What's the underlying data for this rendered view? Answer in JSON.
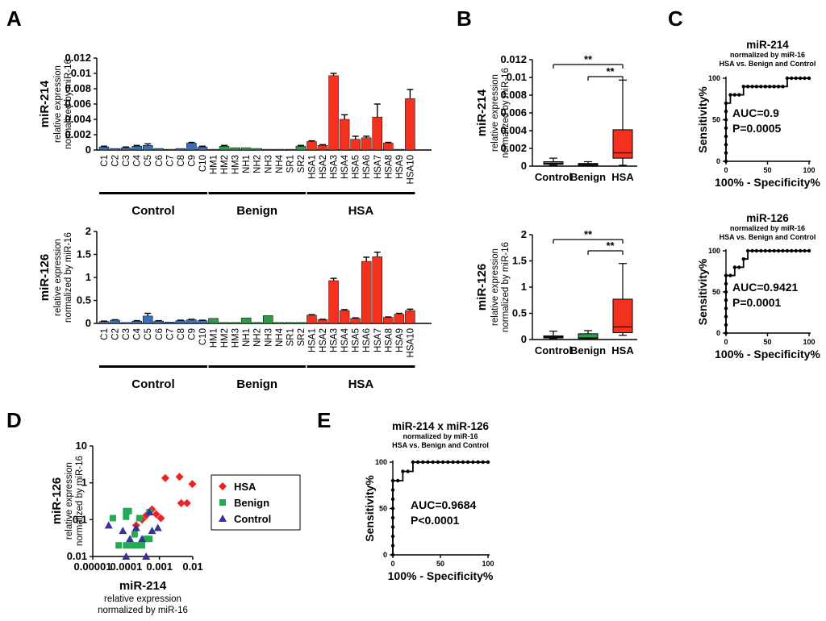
{
  "panels": [
    "A",
    "B",
    "C",
    "D",
    "E"
  ],
  "groups": [
    "Control",
    "Benign",
    "HSA"
  ],
  "colors": {
    "control": "#3a6eb5",
    "benign": "#2e9a4a",
    "hsa": "#f2311f",
    "diamond": "#ee2222",
    "square": "#22aa55",
    "triangle": "#33339a"
  },
  "chart_data": [
    {
      "id": "A-miR214",
      "type": "bar",
      "ylabel": "miR-214",
      "ylabel_sub1": "relative expression",
      "ylabel_sub2": "normalized by miR-16",
      "ylim": [
        0,
        0.012
      ],
      "yticks": [
        "0",
        "0.002",
        "0.004",
        "0.006",
        "0.008",
        "0.01",
        "0.012"
      ],
      "categories": [
        "C1",
        "C2",
        "C3",
        "C4",
        "C5",
        "C6",
        "C7",
        "C8",
        "C9",
        "C10",
        "HM1",
        "HM2",
        "HM3",
        "NH1",
        "NH2",
        "NH3",
        "NH4",
        "SR1",
        "SR2",
        "HSA1",
        "HSA2",
        "HSA3",
        "HSA4",
        "HSA5",
        "HSA6",
        "HSA7",
        "HSA8",
        "HSA9",
        "HSA10"
      ],
      "groups": [
        "control",
        "control",
        "control",
        "control",
        "control",
        "control",
        "control",
        "control",
        "control",
        "control",
        "benign",
        "benign",
        "benign",
        "benign",
        "benign",
        "benign",
        "benign",
        "benign",
        "benign",
        "hsa",
        "hsa",
        "hsa",
        "hsa",
        "hsa",
        "hsa",
        "hsa",
        "hsa",
        "hsa",
        "hsa"
      ],
      "values": [
        0.0004,
        0.0002,
        0.0003,
        0.0005,
        0.0006,
        0.0002,
        0.0001,
        0.0002,
        0.0009,
        0.0004,
        0.0001,
        0.0005,
        0.0003,
        0.0003,
        0.0002,
        0.0001,
        0.0001,
        0.0001,
        0.0005,
        0.0011,
        0.0006,
        0.0097,
        0.004,
        0.0014,
        0.0016,
        0.0043,
        0.0009,
        0.0001,
        0.0067
      ],
      "errors": [
        0.0001,
        0,
        0.0001,
        0.0001,
        0.0002,
        0,
        0,
        0,
        0.0001,
        0.0001,
        0,
        0.0001,
        0,
        0,
        0,
        0,
        0,
        0,
        0.0001,
        0.0001,
        0.0001,
        0.0003,
        0.0006,
        0.0004,
        0.0002,
        0.0017,
        0.0001,
        0,
        0.0012
      ]
    },
    {
      "id": "A-miR126",
      "type": "bar",
      "ylabel": "miR-126",
      "ylabel_sub1": "relative expression",
      "ylabel_sub2": "normalized by miR-16",
      "ylim": [
        0,
        2
      ],
      "yticks": [
        "0",
        "0.5",
        "1",
        "1.5",
        "2"
      ],
      "categories": [
        "C1",
        "C2",
        "C3",
        "C4",
        "C5",
        "C6",
        "C7",
        "C8",
        "C9",
        "C10",
        "HM1",
        "HM2",
        "HM3",
        "NH1",
        "NH2",
        "NH3",
        "NH4",
        "SR1",
        "SR2",
        "HSA1",
        "HSA2",
        "HSA3",
        "HSA4",
        "HSA5",
        "HSA6",
        "HSA7",
        "HSA8",
        "HSA9",
        "HSA10"
      ],
      "groups": [
        "control",
        "control",
        "control",
        "control",
        "control",
        "control",
        "control",
        "control",
        "control",
        "control",
        "benign",
        "benign",
        "benign",
        "benign",
        "benign",
        "benign",
        "benign",
        "benign",
        "benign",
        "hsa",
        "hsa",
        "hsa",
        "hsa",
        "hsa",
        "hsa",
        "hsa",
        "hsa",
        "hsa",
        "hsa"
      ],
      "values": [
        0.04,
        0.07,
        0.02,
        0.05,
        0.16,
        0.05,
        0.03,
        0.06,
        0.08,
        0.06,
        0.11,
        0.02,
        0.02,
        0.12,
        0.02,
        0.17,
        0.02,
        0.02,
        0.02,
        0.18,
        0.08,
        0.93,
        0.28,
        0.11,
        1.35,
        1.45,
        0.13,
        0.2,
        0.28
      ],
      "errors": [
        0.01,
        0.01,
        0,
        0.01,
        0.06,
        0.01,
        0,
        0.01,
        0.01,
        0.01,
        0,
        0,
        0,
        0,
        0,
        0,
        0,
        0,
        0,
        0.01,
        0.01,
        0.05,
        0.02,
        0.01,
        0.09,
        0.1,
        0.01,
        0.02,
        0.03
      ]
    },
    {
      "id": "B-miR214",
      "type": "box",
      "ylabel": "miR-214",
      "ylabel_sub1": "relative expression",
      "ylabel_sub2": "normalized by miR-16",
      "ylim": [
        0,
        0.012
      ],
      "yticks": [
        "0",
        "0.002",
        "0.004",
        "0.006",
        "0.008",
        "0.01",
        "0.012"
      ],
      "categories": [
        "Control",
        "Benign",
        "HSA"
      ],
      "boxes": [
        {
          "min": 0.0001,
          "q1": 0.0002,
          "median": 0.0003,
          "q3": 0.0005,
          "max": 0.0009
        },
        {
          "min": 0.0001,
          "q1": 0.0001,
          "median": 0.0002,
          "q3": 0.0003,
          "max": 0.0005
        },
        {
          "min": 0.0001,
          "q1": 0.0009,
          "median": 0.0015,
          "q3": 0.0041,
          "max": 0.0097
        }
      ],
      "significance": [
        "**",
        "**"
      ]
    },
    {
      "id": "B-miR126",
      "type": "box",
      "ylabel": "miR-126",
      "ylabel_sub1": "relative expression",
      "ylabel_sub2": "normalized by miR-16",
      "ylim": [
        0,
        2
      ],
      "yticks": [
        "0",
        "0.5",
        "1",
        "1.5",
        "2"
      ],
      "categories": [
        "Control",
        "Benign",
        "HSA"
      ],
      "boxes": [
        {
          "min": 0.02,
          "q1": 0.03,
          "median": 0.05,
          "q3": 0.07,
          "max": 0.16
        },
        {
          "min": 0.02,
          "q1": 0.02,
          "median": 0.03,
          "q3": 0.11,
          "max": 0.17
        },
        {
          "min": 0.08,
          "q1": 0.13,
          "median": 0.24,
          "q3": 0.77,
          "max": 1.45
        }
      ],
      "significance": [
        "**",
        "**"
      ]
    },
    {
      "id": "C-miR214",
      "type": "line",
      "subtype": "roc",
      "title": "miR-214",
      "subtitle1": "normalized by miR-16",
      "subtitle2": "HSA vs. Benign and Control",
      "xlabel": "100% - Specificity%",
      "ylabel": "Sensitivity%",
      "xlim": [
        0,
        100
      ],
      "ylim": [
        0,
        100
      ],
      "xticks": [
        "0",
        "50",
        "100"
      ],
      "yticks": [
        "0",
        "50",
        "100"
      ],
      "auc": "AUC=0.9",
      "p": "P=0.0005",
      "x": [
        0,
        0,
        0,
        0,
        0,
        0,
        0,
        0,
        5.3,
        10.5,
        15.8,
        21.1,
        26.3,
        31.6,
        36.8,
        42.1,
        47.4,
        52.6,
        57.9,
        63.2,
        68.4,
        73.7,
        78.9,
        84.2,
        89.5,
        94.7,
        100
      ],
      "y": [
        0,
        10,
        20,
        30,
        40,
        50,
        60,
        70,
        80,
        80,
        80,
        90,
        90,
        90,
        90,
        90,
        90,
        90,
        90,
        90,
        90,
        100,
        100,
        100,
        100,
        100,
        100
      ]
    },
    {
      "id": "C-miR126",
      "type": "line",
      "subtype": "roc",
      "title": "miR-126",
      "subtitle1": "normalized by miR-16",
      "subtitle2": "HSA vs. Benign and Control",
      "xlabel": "100% - Specificity%",
      "ylabel": "Sensitivity%",
      "xlim": [
        0,
        100
      ],
      "ylim": [
        0,
        100
      ],
      "xticks": [
        "0",
        "50",
        "100"
      ],
      "yticks": [
        "0",
        "50",
        "100"
      ],
      "auc": "AUC=0.9421",
      "p": "P=0.0001",
      "x": [
        0,
        0,
        0,
        0,
        0,
        0,
        0,
        0,
        5.3,
        10.5,
        15.8,
        21.1,
        26.3,
        31.6,
        36.8,
        42.1,
        47.4,
        52.6,
        57.9,
        63.2,
        68.4,
        73.7,
        78.9,
        84.2,
        89.5,
        94.7,
        100
      ],
      "y": [
        0,
        10,
        20,
        30,
        40,
        50,
        60,
        70,
        70,
        80,
        80,
        90,
        100,
        100,
        100,
        100,
        100,
        100,
        100,
        100,
        100,
        100,
        100,
        100,
        100,
        100,
        100
      ]
    },
    {
      "id": "D",
      "type": "scatter",
      "scale": "log",
      "xlabel": "miR-214",
      "xlabel_sub1": "relative expression",
      "xlabel_sub2": "normalized by miR-16",
      "ylabel": "miR-126",
      "ylabel_sub1": "relative expression",
      "ylabel_sub2": "normalized by miR-16",
      "xlim": [
        1e-05,
        0.01
      ],
      "ylim": [
        0.01,
        10
      ],
      "xticks": [
        "0.00001",
        "0.0001",
        "0.001",
        "0.01"
      ],
      "yticks": [
        "0.01",
        "0.1",
        "1",
        "10"
      ],
      "legend_position": "right",
      "series": [
        {
          "name": "HSA",
          "marker": "diamond",
          "x": [
            0.0002,
            0.0003,
            0.0004,
            0.0006,
            0.0008,
            0.0011,
            0.0015,
            0.004,
            0.0045,
            0.0067,
            0.0097
          ],
          "y": [
            0.07,
            0.1,
            0.13,
            0.19,
            0.14,
            0.11,
            1.35,
            1.45,
            0.28,
            0.28,
            0.93
          ]
        },
        {
          "name": "Benign",
          "marker": "square",
          "x": [
            4e-05,
            6e-05,
            0.0001,
            0.0001,
            0.00012,
            0.00015,
            0.0002,
            0.00025,
            0.0003,
            0.0004,
            0.0005,
            0.0005,
            0.0001,
            0.00018
          ],
          "y": [
            0.11,
            0.02,
            0.02,
            0.12,
            0.17,
            0.02,
            0.02,
            0.11,
            0.02,
            0.03,
            0.03,
            0.16,
            0.17,
            0.04
          ]
        },
        {
          "name": "Control",
          "marker": "triangle",
          "x": [
            3e-05,
            8e-05,
            0.0001,
            0.00013,
            0.0002,
            0.0003,
            0.0004,
            0.0005,
            0.0009,
            0.0006
          ],
          "y": [
            0.07,
            0.05,
            0.01,
            0.03,
            0.06,
            0.03,
            0.01,
            0.16,
            0.06,
            0.05
          ]
        }
      ]
    },
    {
      "id": "E",
      "type": "line",
      "subtype": "roc",
      "title": "miR-214 x miR-126",
      "subtitle1": "normalized by miR-16",
      "subtitle2": "HSA vs. Benign and Control",
      "xlabel": "100% - Specificity%",
      "ylabel": "Sensitivity%",
      "xlim": [
        0,
        100
      ],
      "ylim": [
        0,
        100
      ],
      "xticks": [
        "0",
        "50",
        "100"
      ],
      "yticks": [
        "0",
        "50",
        "100"
      ],
      "auc": "AUC=0.9684",
      "p": "P<0.0001",
      "x": [
        0,
        0,
        0,
        0,
        0,
        0,
        0,
        0,
        0,
        5.3,
        10.5,
        15.8,
        21.1,
        26.3,
        31.6,
        36.8,
        42.1,
        47.4,
        52.6,
        57.9,
        63.2,
        68.4,
        73.7,
        78.9,
        84.2,
        89.5,
        94.7,
        100
      ],
      "y": [
        0,
        10,
        20,
        30,
        40,
        50,
        60,
        70,
        80,
        80,
        90,
        90,
        100,
        100,
        100,
        100,
        100,
        100,
        100,
        100,
        100,
        100,
        100,
        100,
        100,
        100,
        100,
        100
      ]
    }
  ]
}
